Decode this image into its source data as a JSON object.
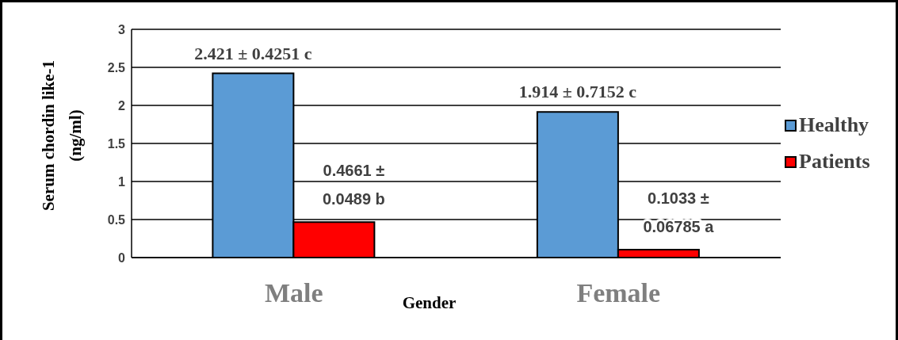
{
  "chart_data": {
    "type": "bar",
    "xlabel": "Gender",
    "ylabel": "Serum chordin like-1 (ng/ml)",
    "categories": [
      "Male",
      "Female"
    ],
    "series": [
      {
        "name": "Healthy",
        "color": "#5b9bd5",
        "values": [
          2.421,
          1.914
        ],
        "value_labels": [
          "2.421 ± 0.4251 c",
          "1.914 ± 0.7152 c"
        ]
      },
      {
        "name": "Patients",
        "color": "#ff0000",
        "values": [
          0.4661,
          0.1033
        ],
        "value_labels": [
          "0.4661 ± 0.0489 b",
          "0.1033 ± 0.06785 a"
        ]
      }
    ],
    "ylim": [
      0,
      3
    ],
    "yticks": [
      0,
      0.5,
      1,
      1.5,
      2,
      2.5,
      3
    ],
    "grid": "y",
    "legend": "right"
  }
}
